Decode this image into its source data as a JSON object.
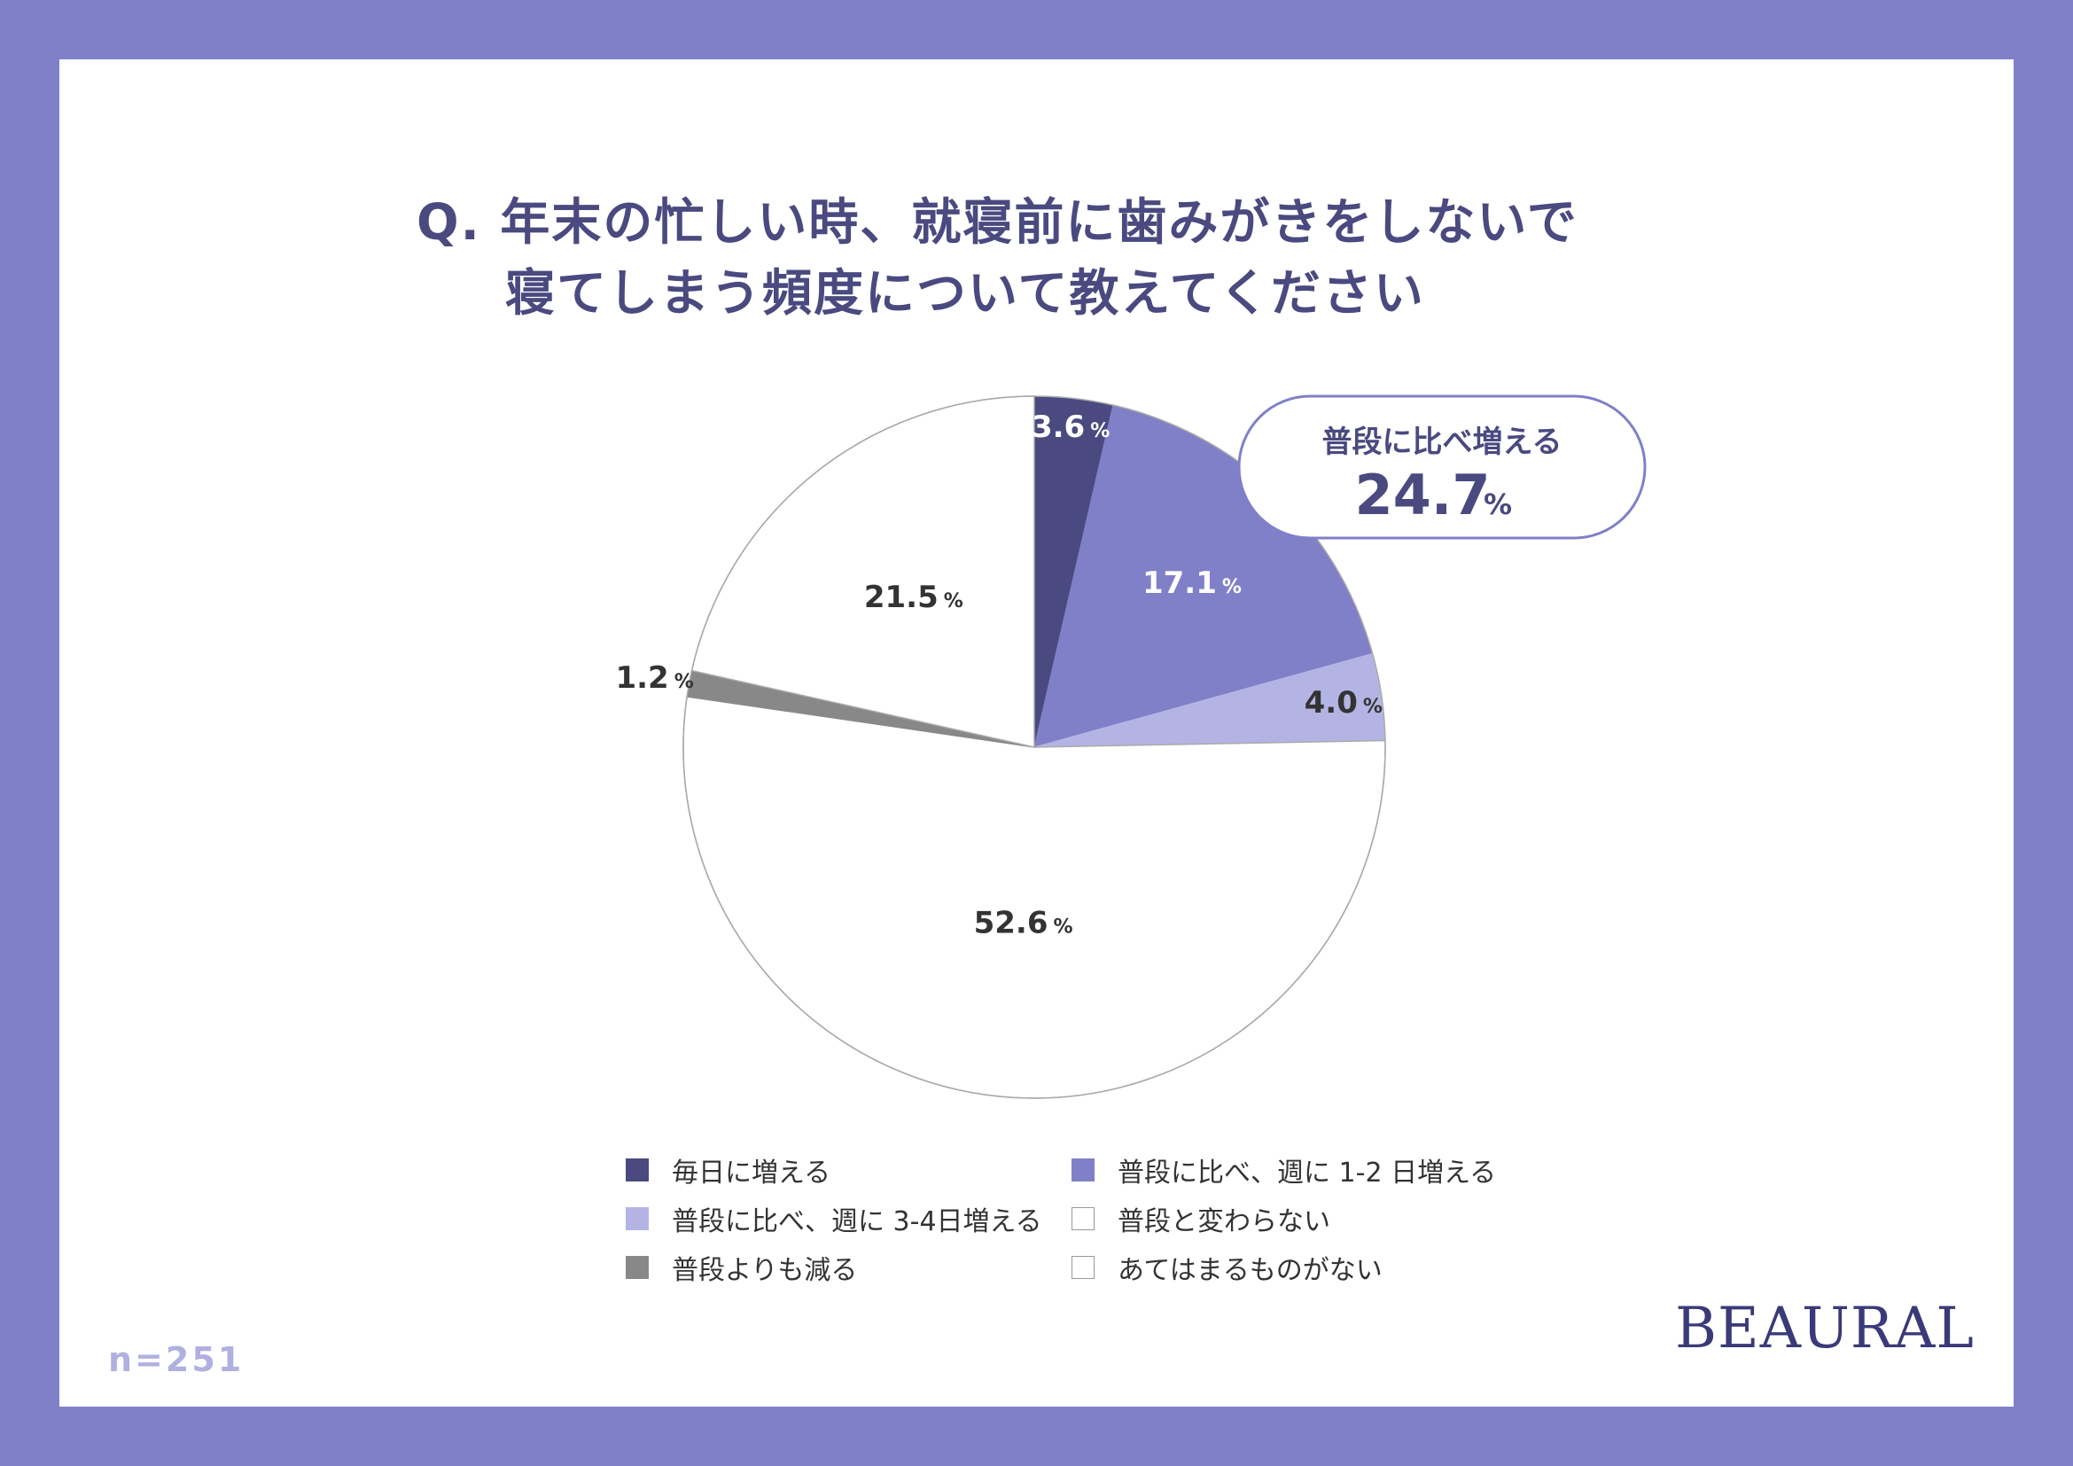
{
  "title": {
    "line1": "Q. 年末の忙しい時、就寝前に歯みがきをしないで",
    "line2": "寝てしまう頻度について教えてください"
  },
  "sample_size": "n=251",
  "brand": "BEAURAL",
  "callout": {
    "label": "普段に比べ増える",
    "value": "24.7",
    "unit": "%"
  },
  "colors": {
    "frame": "#8080c8",
    "dark": "#4a4a80",
    "mid": "#8080c8",
    "light": "#b4b4e4",
    "gray": "#888888",
    "white": "#ffffff",
    "outline": "#aaaaaa"
  },
  "chart_data": {
    "type": "pie",
    "unit": "%",
    "slices": [
      {
        "name": "毎日に増える",
        "value": 3.6,
        "color": "#4a4a80",
        "label_color": "#ffffff"
      },
      {
        "name": "普段に比べ、週に 1-2 日増える",
        "value": 17.1,
        "color": "#8080c8",
        "label_color": "#ffffff"
      },
      {
        "name": "普段に比べ、週に 3-4日増える",
        "value": 4.0,
        "color": "#b4b4e4",
        "label_color": "#333333"
      },
      {
        "name": "普段と変わらない",
        "value": 52.6,
        "color": "#ffffff",
        "label_color": "#333333"
      },
      {
        "name": "普段よりも減る",
        "value": 1.2,
        "color": "#888888",
        "label_color": "#333333"
      },
      {
        "name": "あてはまるものがない",
        "value": 21.5,
        "color": "#ffffff",
        "label_color": "#333333"
      }
    ],
    "legend": [
      {
        "label": "毎日に増える",
        "color": "#4a4a80"
      },
      {
        "label": "普段に比べ、週に 1-2 日増える",
        "color": "#8080c8"
      },
      {
        "label": "普段に比べ、週に 3-4日増える",
        "color": "#b4b4e4"
      },
      {
        "label": "普段と変わらない",
        "color": "#ffffff"
      },
      {
        "label": "普段よりも減る",
        "color": "#888888"
      },
      {
        "label": "あてはまるものがない",
        "color": "#ffffff"
      }
    ],
    "legend_placement": "bottom"
  }
}
